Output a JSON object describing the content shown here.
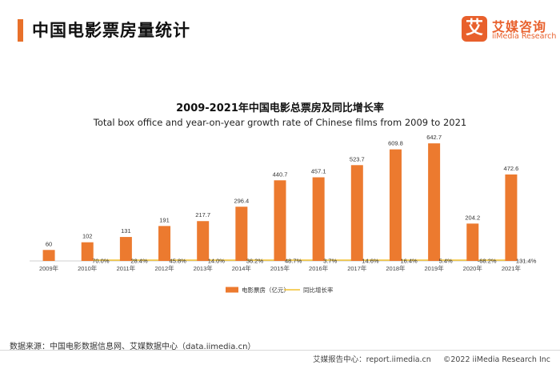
{
  "header": {
    "title": "中国电影票房量统计",
    "logo_mark": "艾",
    "logo_cn": "艾媒咨询",
    "logo_en": "iiMedia Research"
  },
  "colors": {
    "bar": "#ec7a2f",
    "line": "#f2c12e",
    "accent": "#e8702a"
  },
  "chart_data": {
    "type": "bar",
    "title": "2009-2021年中国电影总票房及同比增长率",
    "subtitle": "Total box office and year-on-year growth rate of Chinese films from 2009 to 2021",
    "categories": [
      "2009年",
      "2010年",
      "2011年",
      "2012年",
      "2013年",
      "2014年",
      "2015年",
      "2016年",
      "2017年",
      "2018年",
      "2019年",
      "2020年",
      "2021年"
    ],
    "series": [
      {
        "name": "电影票房（亿元）",
        "type": "bar",
        "values": [
          60,
          102,
          131,
          191,
          217.7,
          296.4,
          440.7,
          457.1,
          523.7,
          609.8,
          642.7,
          204.2,
          472.6
        ],
        "labels": [
          "60",
          "102",
          "131",
          "191",
          "217.7",
          "296.4",
          "440.7",
          "457.1",
          "523.7",
          "609.8",
          "642.7",
          "204.2",
          "472.6"
        ]
      },
      {
        "name": "同比增长率",
        "type": "line",
        "values": [
          null,
          70.0,
          28.4,
          45.8,
          14.0,
          36.2,
          48.7,
          3.7,
          14.6,
          16.4,
          5.4,
          -68.2,
          131.4
        ],
        "labels": [
          "",
          "70.0%",
          "28.4%",
          "45.8%",
          "14.0%",
          "36.2%",
          "48.7%",
          "3.7%",
          "14.6%",
          "16.4%",
          "5.4%",
          "-68.2%",
          "131.4%"
        ]
      }
    ],
    "ylim": [
      0,
      700
    ],
    "legend": "bottom-center",
    "grid": false
  },
  "footer": {
    "source": "数据来源：中国电影数据信息网、艾媒数据中心（data.iimedia.cn）",
    "report_center": "艾媒报告中心：report.iimedia.cn",
    "copyright": "©2022  iiMedia Research  Inc"
  }
}
